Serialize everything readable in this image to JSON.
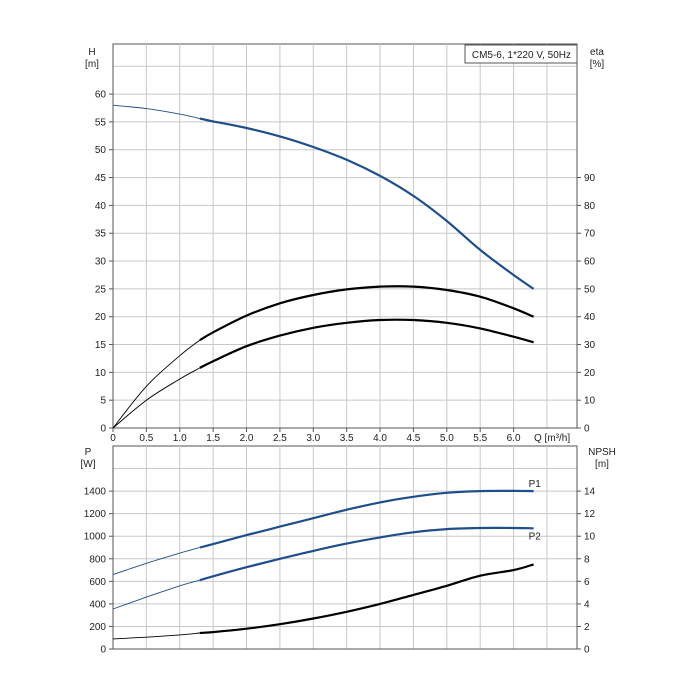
{
  "chart_data": [
    {
      "type": "line",
      "legend": "CM5-6, 1*220 V, 50Hz",
      "x_label": "Q [m³/h]",
      "y_left_label_line1": "H",
      "y_left_label_line2": "[m]",
      "y_right_label_line1": "eta",
      "y_right_label_line2": "[%]",
      "x_ticks": [
        "0",
        "0.5",
        "1.0",
        "1.5",
        "2.0",
        "2.5",
        "3.0",
        "3.5",
        "4.0",
        "4.5",
        "5.0",
        "5.5",
        "6.0"
      ],
      "y_left_ticks": [
        "0",
        "5",
        "10",
        "15",
        "20",
        "25",
        "30",
        "35",
        "40",
        "45",
        "50",
        "55",
        "60"
      ],
      "y_right_ticks": [
        "0",
        "10",
        "20",
        "30",
        "40",
        "50",
        "60",
        "70",
        "80",
        "90"
      ],
      "xlim": [
        0,
        6.95
      ],
      "ylim_left": [
        0,
        69
      ],
      "ylim_right": [
        0,
        138
      ],
      "grid": true,
      "series": [
        {
          "axis": "left",
          "color": "#1f4e8c",
          "x": [
            0,
            0.5,
            1.0,
            1.3,
            1.5,
            2.0,
            2.5,
            3.0,
            3.5,
            4.0,
            4.5,
            5.0,
            5.5,
            6.0,
            6.3
          ],
          "values": [
            58.0,
            57.4,
            56.4,
            55.6,
            55.1,
            53.9,
            52.4,
            50.5,
            48.2,
            45.3,
            41.7,
            37.2,
            32.0,
            27.5,
            25.0
          ]
        },
        {
          "axis": "left",
          "color": "#000000",
          "x": [
            0,
            0.5,
            1.0,
            1.3,
            1.5,
            2.0,
            2.5,
            3.0,
            3.5,
            4.0,
            4.5,
            5.0,
            5.5,
            6.0,
            6.3
          ],
          "values": [
            0,
            7.5,
            13.0,
            15.8,
            17.2,
            20.2,
            22.4,
            23.9,
            24.9,
            25.4,
            25.4,
            24.8,
            23.6,
            21.5,
            20.0
          ]
        },
        {
          "axis": "left",
          "color": "#000000",
          "x": [
            0,
            0.5,
            1.0,
            1.3,
            1.5,
            2.0,
            2.5,
            3.0,
            3.5,
            4.0,
            4.5,
            5.0,
            5.5,
            6.0,
            6.3
          ],
          "values": [
            0,
            5.0,
            8.8,
            10.8,
            12.0,
            14.7,
            16.6,
            18.0,
            18.9,
            19.4,
            19.4,
            18.9,
            17.9,
            16.4,
            15.4
          ]
        }
      ]
    },
    {
      "type": "line",
      "y_left_label_line1": "P",
      "y_left_label_line2": "[W]",
      "y_right_label_line1": "NPSH",
      "y_right_label_line2": "[m]",
      "y_left_ticks": [
        "0",
        "200",
        "400",
        "600",
        "800",
        "1000",
        "1200",
        "1400"
      ],
      "y_right_ticks": [
        "0",
        "2",
        "4",
        "6",
        "8",
        "10",
        "12",
        "14"
      ],
      "xlim": [
        0,
        6.95
      ],
      "ylim_left": [
        0,
        1800
      ],
      "ylim_right": [
        0,
        18
      ],
      "grid": true,
      "series": [
        {
          "name": "P1",
          "axis": "left",
          "color": "#1f4e8c",
          "x": [
            0,
            0.5,
            1.0,
            1.3,
            1.5,
            2.0,
            2.5,
            3.0,
            3.5,
            4.0,
            4.5,
            5.0,
            5.5,
            6.0,
            6.3
          ],
          "values": [
            660,
            760,
            850,
            900,
            930,
            1010,
            1085,
            1160,
            1235,
            1300,
            1350,
            1385,
            1400,
            1402,
            1400
          ]
        },
        {
          "name": "P2",
          "axis": "left",
          "color": "#1f4e8c",
          "x": [
            0,
            0.5,
            1.0,
            1.3,
            1.5,
            2.0,
            2.5,
            3.0,
            3.5,
            4.0,
            4.5,
            5.0,
            5.5,
            6.0,
            6.3
          ],
          "values": [
            355,
            460,
            560,
            610,
            645,
            725,
            800,
            870,
            935,
            990,
            1035,
            1063,
            1073,
            1073,
            1070
          ]
        },
        {
          "axis": "right",
          "color": "#000000",
          "x": [
            0,
            0.5,
            1.0,
            1.3,
            1.5,
            2.0,
            2.5,
            3.0,
            3.5,
            4.0,
            4.5,
            5.0,
            5.5,
            6.0,
            6.3
          ],
          "values": [
            0.9,
            1.05,
            1.25,
            1.42,
            1.5,
            1.8,
            2.2,
            2.7,
            3.3,
            4.0,
            4.8,
            5.6,
            6.5,
            7.0,
            7.5
          ]
        }
      ]
    }
  ]
}
